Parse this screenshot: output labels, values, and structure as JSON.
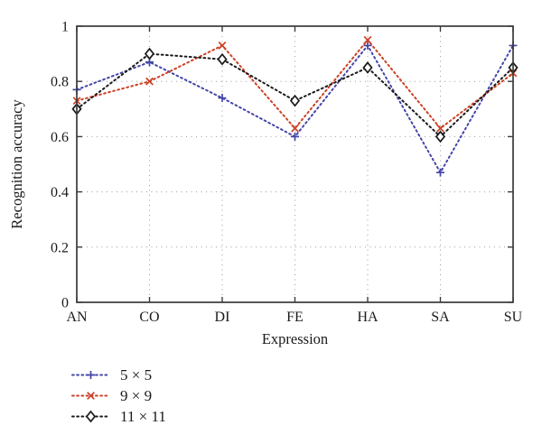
{
  "chart_data": {
    "type": "line",
    "title": "",
    "xlabel": "Expression",
    "ylabel": "Recognition accuracy",
    "categories": [
      "AN",
      "CO",
      "DI",
      "FE",
      "HA",
      "SA",
      "SU"
    ],
    "ylim": [
      0,
      1
    ],
    "yticks": [
      0,
      0.2,
      0.4,
      0.6,
      0.8,
      1
    ],
    "ytick_labels": [
      "0",
      "0.2",
      "0.4",
      "0.6",
      "0.8",
      "1"
    ],
    "grid": true,
    "grid_style": "dotted",
    "legend_position": "below-plot-left",
    "axis_color": "#3a3a3a",
    "grid_color": "#9b9b9b",
    "text_color": "#1a1a1a",
    "series": [
      {
        "name": "5 × 5",
        "marker": "plus",
        "line_style": "dotted",
        "color": "#4545a8",
        "values": [
          0.77,
          0.87,
          0.74,
          0.6,
          0.93,
          0.47,
          0.93
        ]
      },
      {
        "name": "9 × 9",
        "marker": "x",
        "line_style": "dotted",
        "color": "#cc4125",
        "values": [
          0.73,
          0.8,
          0.93,
          0.63,
          0.95,
          0.63,
          0.83
        ]
      },
      {
        "name": "11 × 11",
        "marker": "diamond",
        "line_style": "dotted",
        "color": "#1a1a1a",
        "values": [
          0.7,
          0.9,
          0.88,
          0.73,
          0.85,
          0.6,
          0.85
        ]
      }
    ]
  }
}
